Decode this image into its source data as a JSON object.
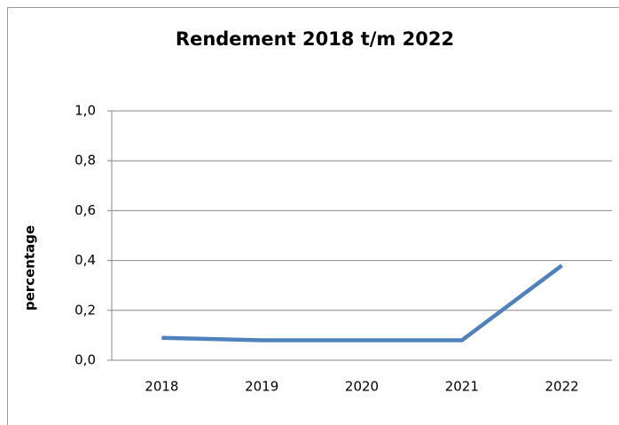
{
  "chart_data": {
    "type": "line",
    "title": "Rendement 2018 t/m 2022",
    "y_label": "percentage",
    "categories": [
      "2018",
      "2019",
      "2020",
      "2021",
      "2022"
    ],
    "series": [
      {
        "name": "Rendement",
        "color": "#4f81bd",
        "values": [
          0.09,
          0.08,
          0.08,
          0.08,
          0.38
        ]
      }
    ],
    "ylim": [
      0,
      1
    ],
    "yticks": [
      {
        "value": 0,
        "label": "0,0"
      },
      {
        "value": 0.2,
        "label": "0,2"
      },
      {
        "value": 0.4,
        "label": "0,4"
      },
      {
        "value": 0.6,
        "label": "0,6"
      },
      {
        "value": 0.8,
        "label": "0,8"
      },
      {
        "value": 1,
        "label": "1,0"
      }
    ],
    "grid": true,
    "legend": false
  }
}
